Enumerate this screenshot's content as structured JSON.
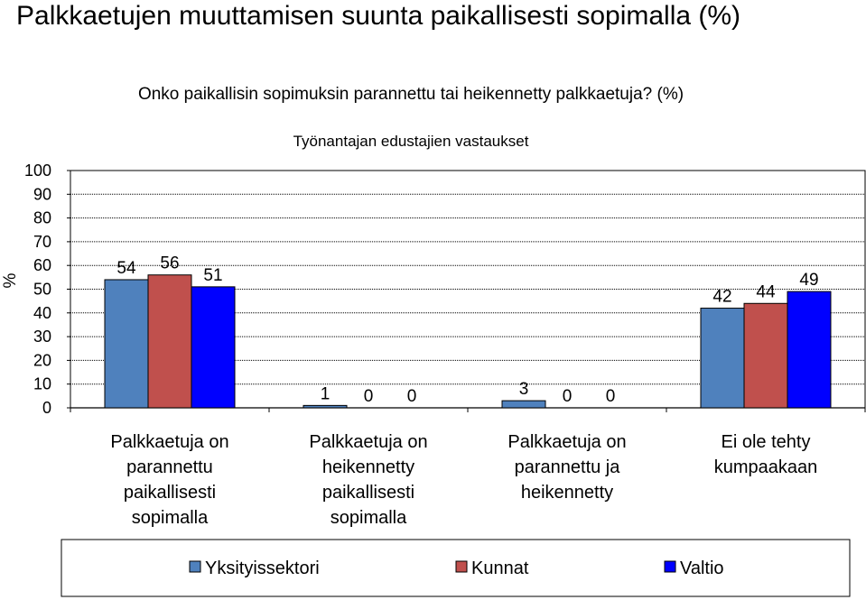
{
  "page_title": "Palkkaetujen muuttamisen suunta paikallisesti sopimalla (%)",
  "colors": {
    "Yksityissektori": "#4f81bd",
    "Kunnat": "#c0504d",
    "Valtio": "#0000ff",
    "gridline": "#000000",
    "background": "#ffffff"
  },
  "chart_data": {
    "type": "bar",
    "title": "Onko paikallisin sopimuksin parannettu tai heikennetty palkkaetuja? (%)",
    "subtitle": "Työnantajan edustajien vastaukset",
    "xlabel": "",
    "ylabel": "%",
    "ylim": [
      0,
      100
    ],
    "yticks": [
      0,
      10,
      20,
      30,
      40,
      50,
      60,
      70,
      80,
      90,
      100
    ],
    "grid": true,
    "legend_position": "bottom",
    "categories": [
      [
        "Palkkaetuja on",
        "parannettu",
        "paikallisesti",
        "sopimalla"
      ],
      [
        "Palkkaetuja on",
        "heikennetty",
        "paikallisesti",
        "sopimalla"
      ],
      [
        "Palkkaetuja on",
        "parannettu ja",
        "heikennetty"
      ],
      [
        "Ei ole tehty",
        "kumpaakaan"
      ]
    ],
    "series": [
      {
        "name": "Yksityissektori",
        "values": [
          54,
          1,
          3,
          42
        ]
      },
      {
        "name": "Kunnat",
        "values": [
          56,
          0,
          0,
          44
        ]
      },
      {
        "name": "Valtio",
        "values": [
          51,
          0,
          0,
          49
        ]
      }
    ]
  }
}
